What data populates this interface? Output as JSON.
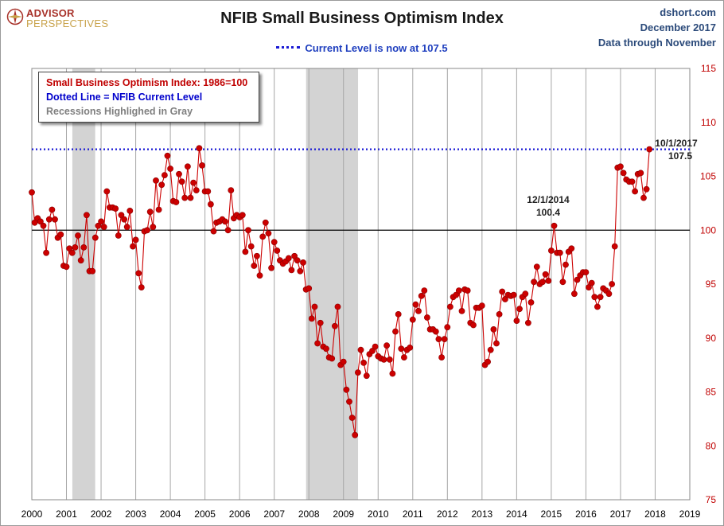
{
  "brand": {
    "line1": "ADVISOR",
    "line2": "PERSPECTIVES",
    "mark_color": "#a8322a"
  },
  "title": "NFIB Small Business Optimism Index",
  "subtitle": "Current Level is now at 107.5",
  "source": {
    "site": "dshort.com",
    "date": "December 2017",
    "through": "Data through November"
  },
  "legend": {
    "line1": "Small Business Optimism Index: 1986=100",
    "line2": "Dotted Line = NFIB Current Level",
    "line3": "Recessions Highlighed in Gray"
  },
  "colors": {
    "series": "#cc0000",
    "current_line": "#1a1ad4",
    "recession": "#d3d3d3",
    "baseline": "#000000"
  },
  "chart_data": {
    "type": "line",
    "title": "NFIB Small Business Optimism Index",
    "xlabel": "",
    "ylabel": "",
    "xlim": [
      2000,
      2019
    ],
    "ylim": [
      75,
      115
    ],
    "x_ticks": [
      2000,
      2001,
      2002,
      2003,
      2004,
      2005,
      2006,
      2007,
      2008,
      2009,
      2010,
      2011,
      2012,
      2013,
      2014,
      2015,
      2016,
      2017,
      2018,
      2019
    ],
    "y_ticks": [
      75,
      80,
      85,
      90,
      95,
      100,
      105,
      110,
      115
    ],
    "y_axis_side": "right",
    "grid": "vertical",
    "baseline": 100,
    "current_level": 107.5,
    "recessions": [
      [
        2001.17,
        2001.83
      ],
      [
        2007.92,
        2009.42
      ]
    ],
    "series": [
      {
        "start": "2000-01",
        "frequency": "monthly",
        "values": [
          103.5,
          100.7,
          101.1,
          100.8,
          100.4,
          97.9,
          101.0,
          101.9,
          101.0,
          99.3,
          99.6,
          96.7,
          96.6,
          98.3,
          97.9,
          98.4,
          99.5,
          97.2,
          98.4,
          101.4,
          96.2,
          96.2,
          99.3,
          100.4,
          100.8,
          100.3,
          103.6,
          102.1,
          102.1,
          102.0,
          99.5,
          101.4,
          101.0,
          100.3,
          101.8,
          98.5,
          99.1,
          96.0,
          94.7,
          99.9,
          100.0,
          101.7,
          100.3,
          104.6,
          101.9,
          104.2,
          105.1,
          106.9,
          105.7,
          102.7,
          102.6,
          105.2,
          104.5,
          103.0,
          105.9,
          103.0,
          104.4,
          103.7,
          107.6,
          106.0,
          103.6,
          103.6,
          102.4,
          99.9,
          100.7,
          100.8,
          101.0,
          100.8,
          100.0,
          103.7,
          101.1,
          101.4,
          101.2,
          101.4,
          98.0,
          100.0,
          98.5,
          96.7,
          97.6,
          95.8,
          99.4,
          100.7,
          99.7,
          96.5,
          98.9,
          98.1,
          97.2,
          96.9,
          97.1,
          97.4,
          96.3,
          97.6,
          97.2,
          96.2,
          97.0,
          94.5,
          94.6,
          91.8,
          92.9,
          89.5,
          91.4,
          89.2,
          89.0,
          88.2,
          88.1,
          91.1,
          92.9,
          87.5,
          87.8,
          85.2,
          84.1,
          82.6,
          81.0,
          86.8,
          88.9,
          87.7,
          86.5,
          88.5,
          88.8,
          89.2,
          88.3,
          88.1,
          88.0,
          89.3,
          88.0,
          86.7,
          90.6,
          92.2,
          89.0,
          88.2,
          88.9,
          89.1,
          91.7,
          93.1,
          92.5,
          93.9,
          94.4,
          91.9,
          90.8,
          90.8,
          90.6,
          89.9,
          88.2,
          89.9,
          91.0,
          92.9,
          93.8,
          94.0,
          94.4,
          92.5,
          94.5,
          94.4,
          91.4,
          91.2,
          92.8,
          92.8,
          93.0,
          87.5,
          87.8,
          88.9,
          90.8,
          89.5,
          92.2,
          94.3,
          93.6,
          94.0,
          93.9,
          94.0,
          91.6,
          92.7,
          93.8,
          94.1,
          91.4,
          93.3,
          95.2,
          96.6,
          95.0,
          95.2,
          95.9,
          95.3,
          98.1,
          100.4,
          97.9,
          97.9,
          95.2,
          96.8,
          98.0,
          98.3,
          94.1,
          95.4,
          95.8,
          96.1,
          96.1,
          94.7,
          95.1,
          93.8,
          92.9,
          93.8,
          94.6,
          94.4,
          94.1,
          95.0,
          98.5,
          105.8,
          105.9,
          105.3,
          104.7,
          104.5,
          104.5,
          103.6,
          105.2,
          105.3,
          103.0,
          103.8,
          107.5
        ]
      }
    ],
    "annotations": [
      {
        "date": "12/1/2014",
        "value": 100.4
      },
      {
        "date": "10/1/2017",
        "value": 107.5
      }
    ]
  }
}
